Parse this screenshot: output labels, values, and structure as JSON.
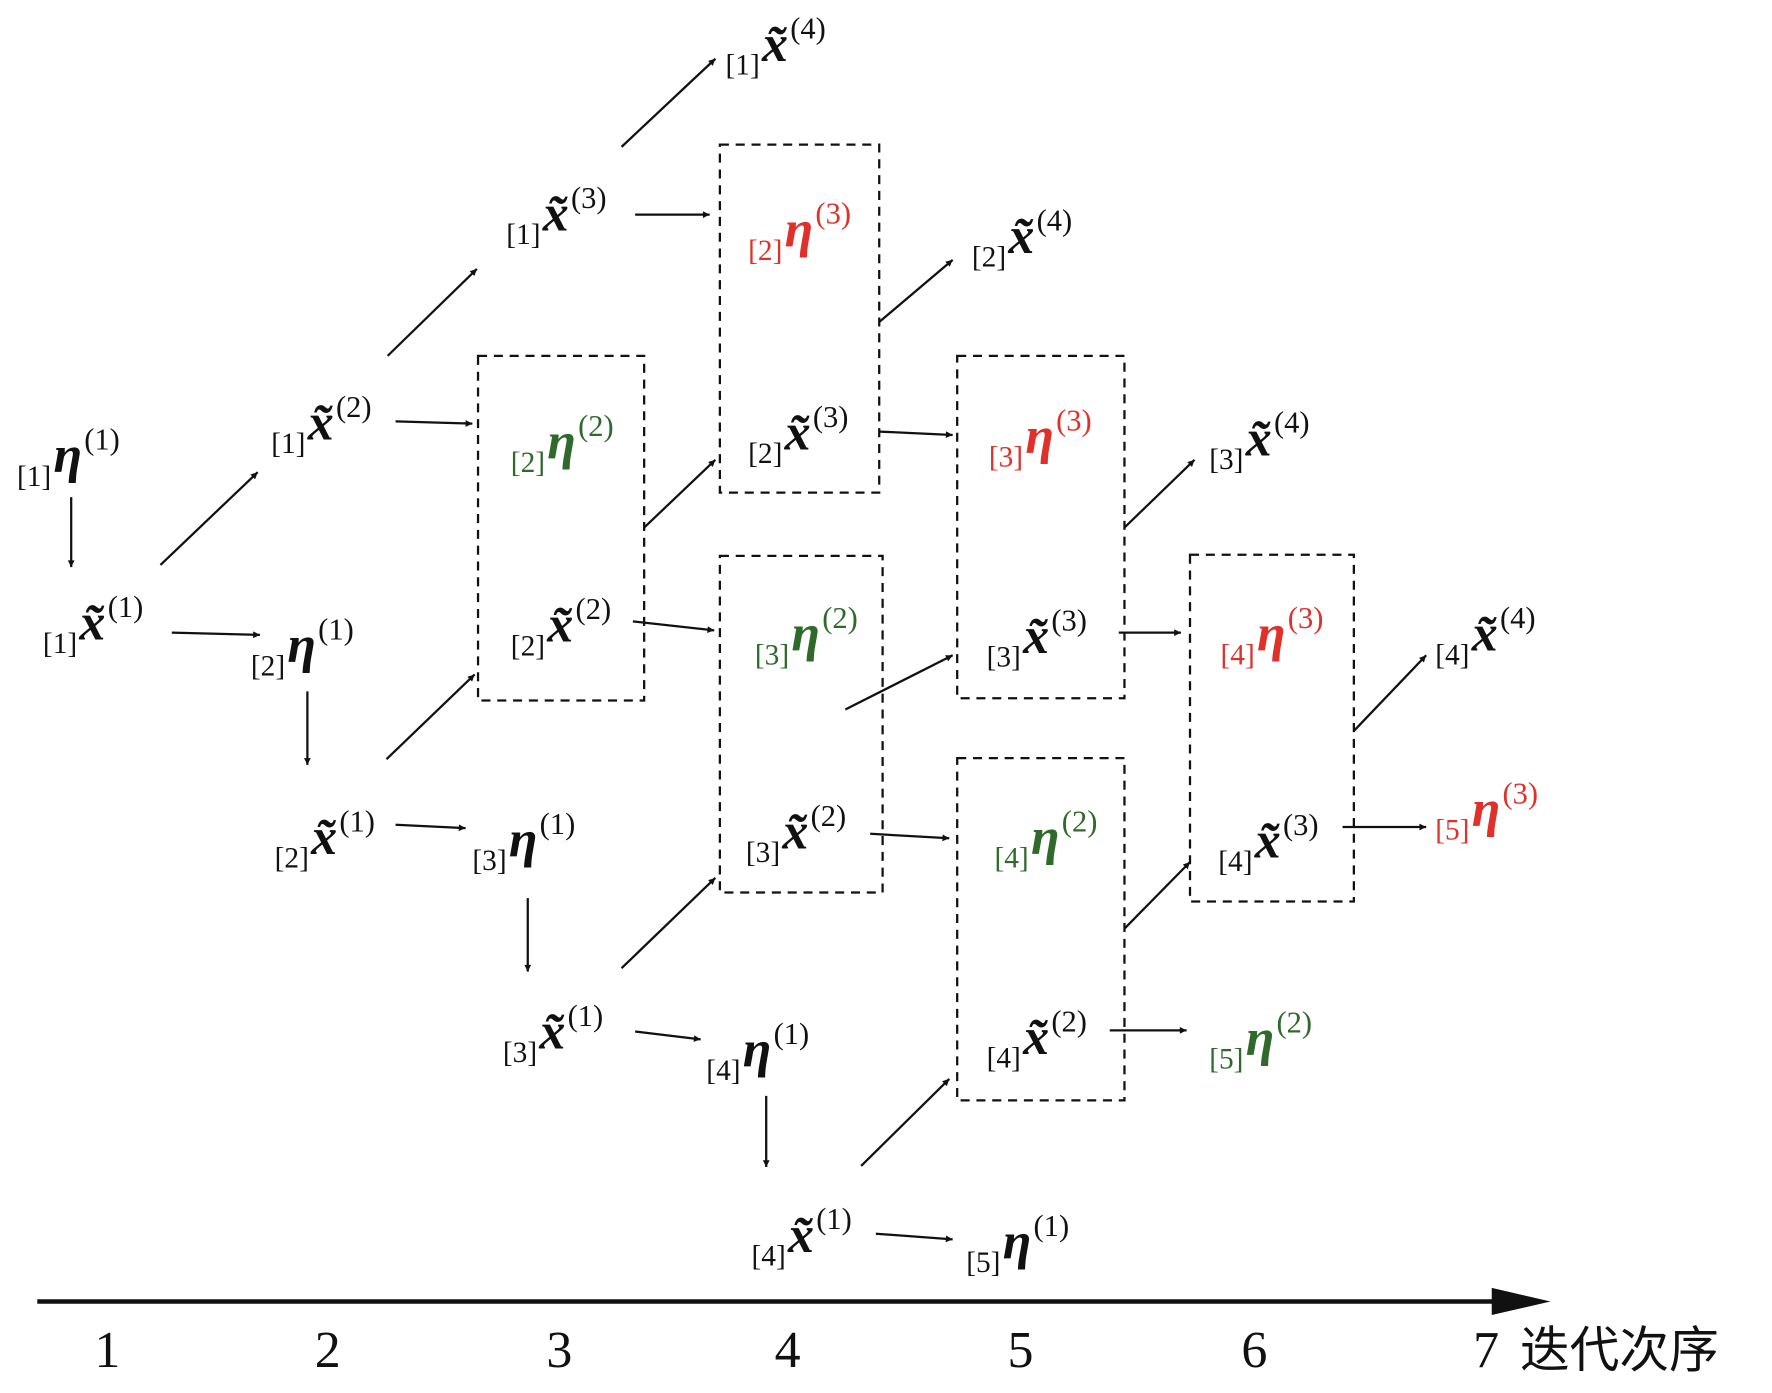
{
  "nodes": [
    {
      "index": "[1]",
      "symbol": "η",
      "order": "(1)",
      "color": "#111111"
    },
    {
      "index": "[1]",
      "symbol": "x̃",
      "order": "(1)",
      "color": "#111111"
    },
    {
      "index": "[2]",
      "symbol": "η",
      "order": "(1)",
      "color": "#111111"
    },
    {
      "index": "[2]",
      "symbol": "x̃",
      "order": "(1)",
      "color": "#111111"
    },
    {
      "index": "[3]",
      "symbol": "η",
      "order": "(1)",
      "color": "#111111"
    },
    {
      "index": "[3]",
      "symbol": "x̃",
      "order": "(1)",
      "color": "#111111"
    },
    {
      "index": "[4]",
      "symbol": "η",
      "order": "(1)",
      "color": "#111111"
    },
    {
      "index": "[4]",
      "symbol": "x̃",
      "order": "(1)",
      "color": "#111111"
    },
    {
      "index": "[5]",
      "symbol": "η",
      "order": "(1)",
      "color": "#111111"
    },
    {
      "index": "[1]",
      "symbol": "x̃",
      "order": "(2)",
      "color": "#111111"
    },
    {
      "index": "[2]",
      "symbol": "η",
      "order": "(2)",
      "color": "#2f6a2a"
    },
    {
      "index": "[2]",
      "symbol": "x̃",
      "order": "(2)",
      "color": "#111111"
    },
    {
      "index": "[3]",
      "symbol": "η",
      "order": "(2)",
      "color": "#2f6a2a"
    },
    {
      "index": "[3]",
      "symbol": "x̃",
      "order": "(2)",
      "color": "#111111"
    },
    {
      "index": "[4]",
      "symbol": "η",
      "order": "(2)",
      "color": "#2f6a2a"
    },
    {
      "index": "[4]",
      "symbol": "x̃",
      "order": "(2)",
      "color": "#111111"
    },
    {
      "index": "[5]",
      "symbol": "η",
      "order": "(2)",
      "color": "#2f6a2a"
    },
    {
      "index": "[1]",
      "symbol": "x̃",
      "order": "(3)",
      "color": "#111111"
    },
    {
      "index": "[2]",
      "symbol": "η",
      "order": "(3)",
      "color": "#e0302a"
    },
    {
      "index": "[2]",
      "symbol": "x̃",
      "order": "(3)",
      "color": "#111111"
    },
    {
      "index": "[3]",
      "symbol": "η",
      "order": "(3)",
      "color": "#e0302a"
    },
    {
      "index": "[3]",
      "symbol": "x̃",
      "order": "(3)",
      "color": "#111111"
    },
    {
      "index": "[4]",
      "symbol": "η",
      "order": "(3)",
      "color": "#e0302a"
    },
    {
      "index": "[4]",
      "symbol": "x̃",
      "order": "(3)",
      "color": "#111111"
    },
    {
      "index": "[5]",
      "symbol": "η",
      "order": "(3)",
      "color": "#e0302a"
    },
    {
      "index": "[1]",
      "symbol": "x̃",
      "order": "(4)",
      "color": "#111111"
    },
    {
      "index": "[2]",
      "symbol": "x̃",
      "order": "(4)",
      "color": "#111111"
    },
    {
      "index": "[3]",
      "symbol": "x̃",
      "order": "(4)",
      "color": "#111111"
    },
    {
      "index": "[4]",
      "symbol": "x̃",
      "order": "(4)",
      "color": "#111111"
    }
  ],
  "axis": {
    "ticks": [
      "1",
      "2",
      "3",
      "4",
      "5",
      "6",
      "7"
    ],
    "label": "迭代次序"
  }
}
